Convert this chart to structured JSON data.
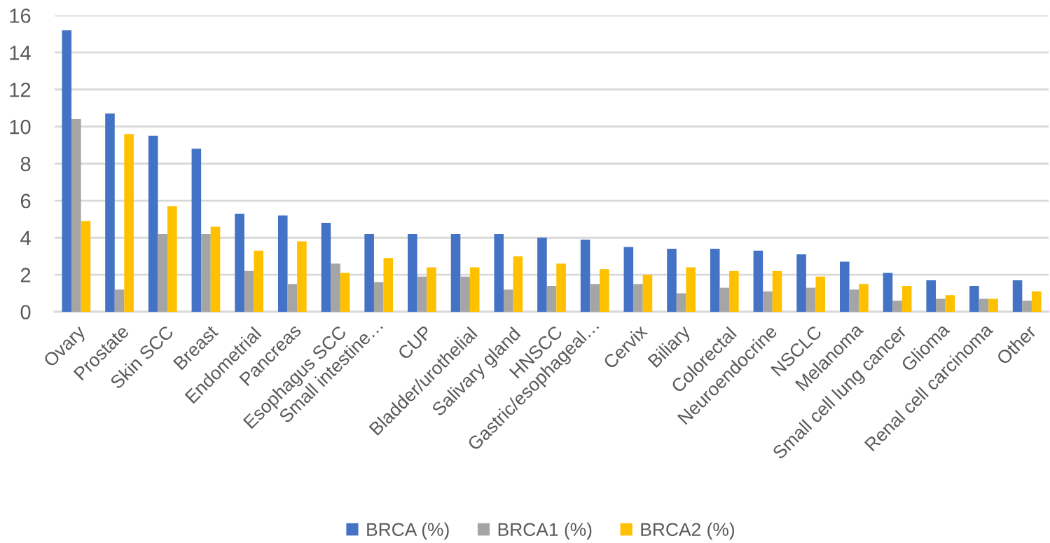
{
  "chart_data": {
    "type": "bar",
    "categories": [
      "Ovary",
      "Prostate",
      "Skin SCC",
      "Breast",
      "Endometrial",
      "Pancreas",
      "Esophagus SCC",
      "Small intestine…",
      "CUP",
      "Bladder/urothelial",
      "Salivary gland",
      "HNSCC",
      "Gastric/esophageal…",
      "Cervix",
      "Biliary",
      "Colorectal",
      "Neuroendocrine",
      "NSCLC",
      "Melanoma",
      "Small cell lung cancer",
      "Glioma",
      "Renal cell carcinoma",
      "Other"
    ],
    "series": [
      {
        "name": "BRCA (%)",
        "color": "#4472c4",
        "values": [
          15.2,
          10.7,
          9.5,
          8.8,
          5.3,
          5.2,
          4.8,
          4.2,
          4.2,
          4.2,
          4.2,
          4.0,
          3.9,
          3.5,
          3.4,
          3.4,
          3.3,
          3.1,
          2.7,
          2.1,
          1.7,
          1.4,
          1.7
        ]
      },
      {
        "name": "BRCA1 (%)",
        "color": "#a5a5a5",
        "values": [
          10.4,
          1.2,
          4.2,
          4.2,
          2.2,
          1.5,
          2.6,
          1.6,
          1.9,
          1.9,
          1.2,
          1.4,
          1.5,
          1.5,
          1.0,
          1.3,
          1.1,
          1.3,
          1.2,
          0.6,
          0.7,
          0.7,
          0.6
        ]
      },
      {
        "name": "BRCA2 (%)",
        "color": "#ffc000",
        "values": [
          4.9,
          9.6,
          5.7,
          4.6,
          3.3,
          3.8,
          2.1,
          2.9,
          2.4,
          2.4,
          3.0,
          2.6,
          2.3,
          2.0,
          2.4,
          2.2,
          2.2,
          1.9,
          1.5,
          1.4,
          0.9,
          0.7,
          1.1
        ]
      }
    ],
    "ylim": [
      0,
      16
    ],
    "yticks": [
      0,
      2,
      4,
      6,
      8,
      10,
      12,
      14,
      16
    ],
    "grid": "y",
    "legend": "bottom"
  }
}
